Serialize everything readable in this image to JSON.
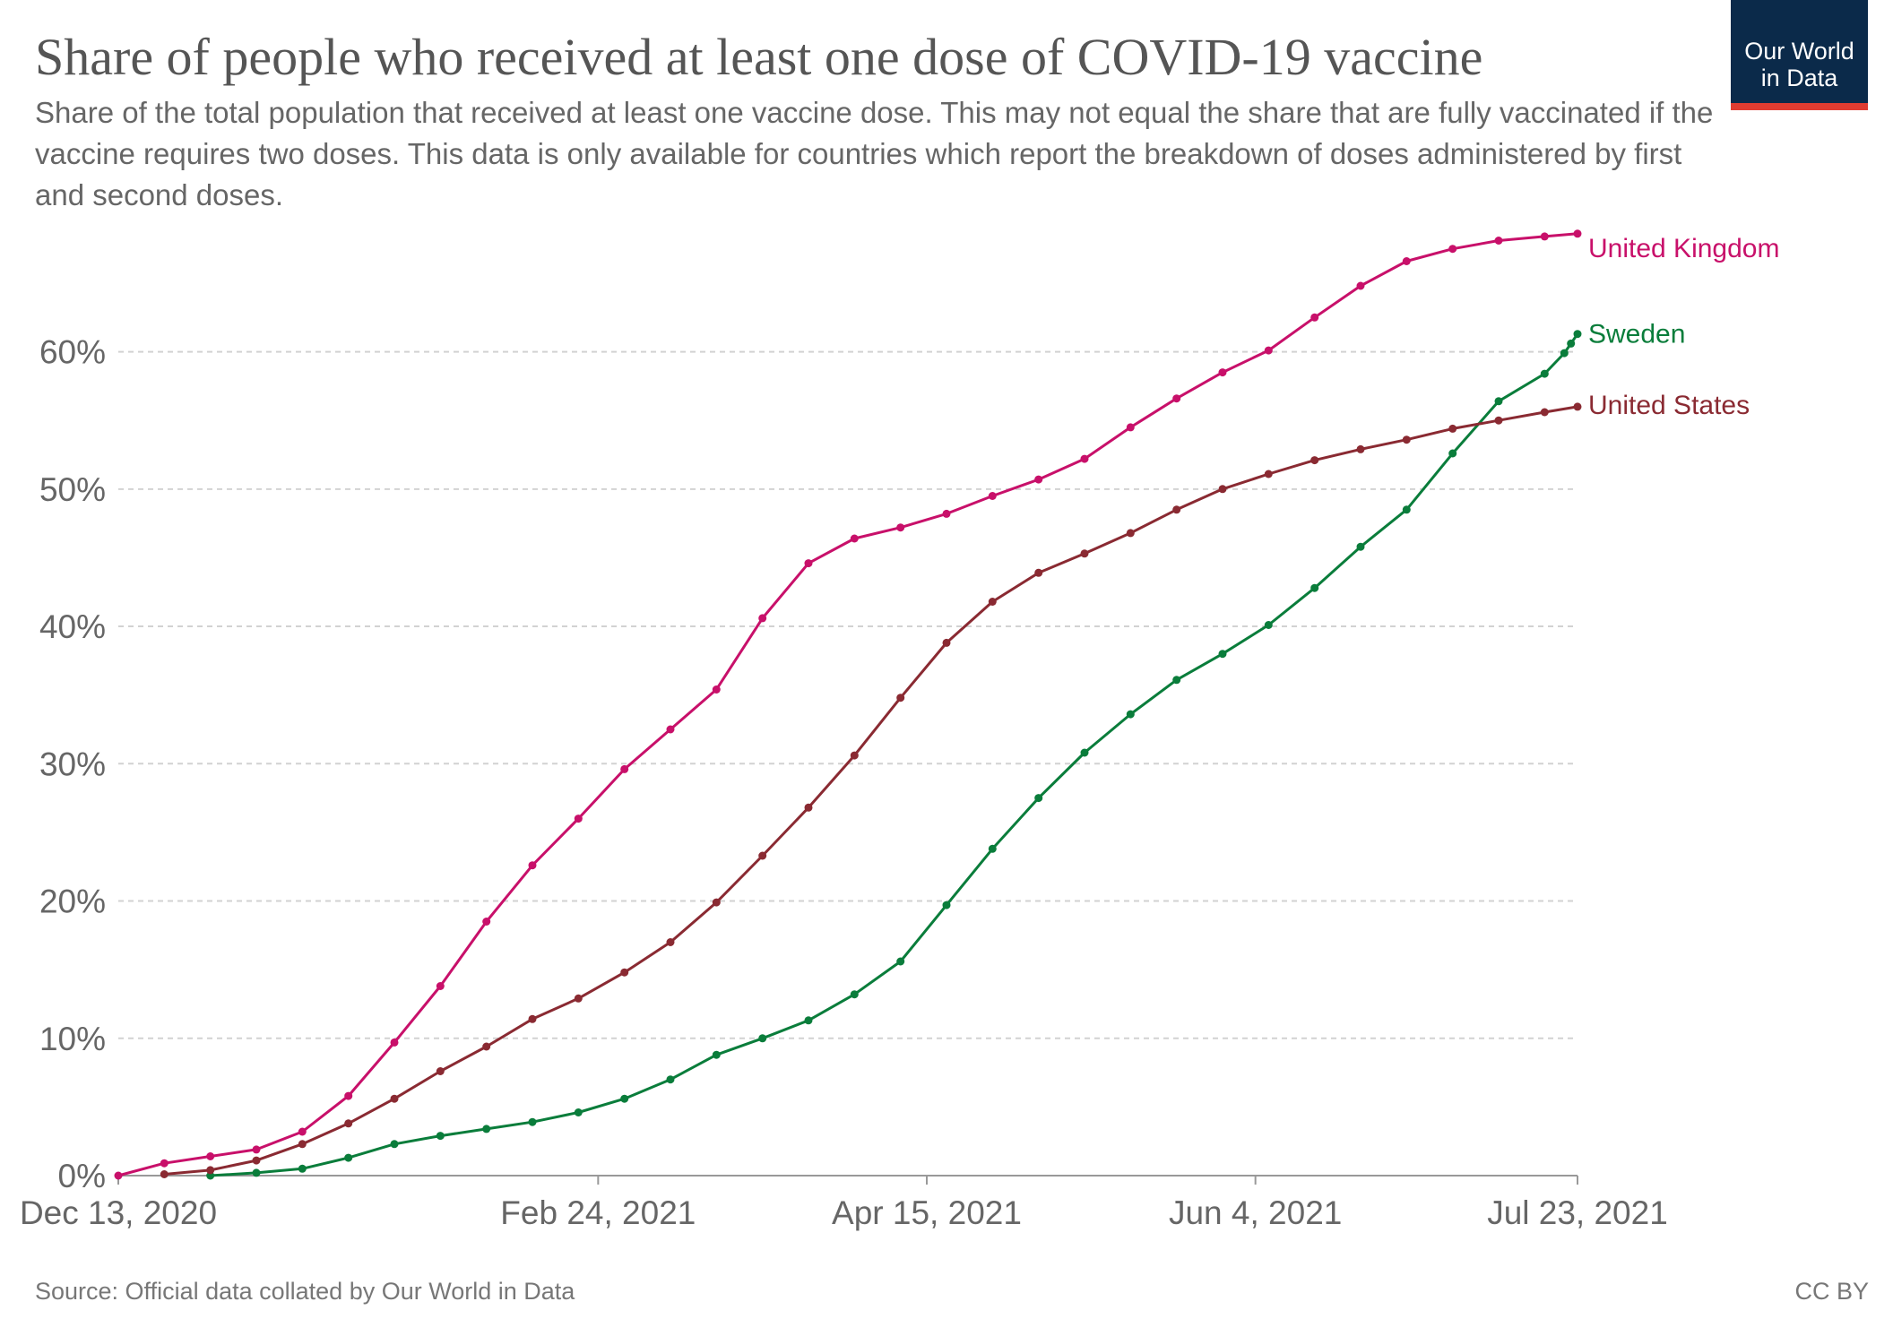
{
  "header": {
    "title": "Share of people who received at least one dose of COVID-19 vaccine",
    "subtitle": "Share of the total population that received at least one vaccine dose. This may not equal the share that are fully vaccinated if the vaccine requires two doses. This data is only available for countries which report the breakdown of doses administered by first and second doses.",
    "logo_text": "Our World\nin Data"
  },
  "footer": {
    "source": "Source: Official data collated by Our World in Data",
    "license": "CC BY"
  },
  "colors": {
    "united_kingdom": "#c8106a",
    "sweden": "#0a7d3b",
    "united_states": "#8a2a32",
    "grid": "#d2d2d2",
    "logo_bg": "#0b2a4a",
    "logo_accent": "#e03c31"
  },
  "chart_data": {
    "type": "line",
    "x_type": "date",
    "x_range": [
      "2020-12-13",
      "2021-07-23"
    ],
    "x_ticks": [
      {
        "date": "2020-12-13",
        "label": "Dec 13, 2020"
      },
      {
        "date": "2021-02-24",
        "label": "Feb 24, 2021"
      },
      {
        "date": "2021-04-15",
        "label": "Apr 15, 2021"
      },
      {
        "date": "2021-06-04",
        "label": "Jun 4, 2021"
      },
      {
        "date": "2021-07-23",
        "label": "Jul 23, 2021"
      }
    ],
    "y_ticks": [
      0,
      10,
      20,
      30,
      40,
      50,
      60
    ],
    "y_tick_labels": [
      "0%",
      "10%",
      "20%",
      "30%",
      "40%",
      "50%",
      "60%"
    ],
    "ylim": [
      0,
      68
    ],
    "grid": true,
    "legend": "end-of-line labels",
    "series": [
      {
        "name": "United Kingdom",
        "color_key": "united_kingdom",
        "points": [
          [
            "2020-12-13",
            0
          ],
          [
            "2020-12-20",
            0.9
          ],
          [
            "2020-12-27",
            1.4
          ],
          [
            "2021-01-03",
            1.9
          ],
          [
            "2021-01-10",
            3.2
          ],
          [
            "2021-01-17",
            5.8
          ],
          [
            "2021-01-24",
            9.7
          ],
          [
            "2021-01-31",
            13.8
          ],
          [
            "2021-02-07",
            18.5
          ],
          [
            "2021-02-14",
            22.6
          ],
          [
            "2021-02-21",
            26.0
          ],
          [
            "2021-02-28",
            29.6
          ],
          [
            "2021-03-07",
            32.5
          ],
          [
            "2021-03-14",
            35.4
          ],
          [
            "2021-03-21",
            40.6
          ],
          [
            "2021-03-28",
            44.6
          ],
          [
            "2021-04-04",
            46.4
          ],
          [
            "2021-04-11",
            47.2
          ],
          [
            "2021-04-18",
            48.2
          ],
          [
            "2021-04-25",
            49.5
          ],
          [
            "2021-05-02",
            50.7
          ],
          [
            "2021-05-09",
            52.2
          ],
          [
            "2021-05-16",
            54.5
          ],
          [
            "2021-05-23",
            56.6
          ],
          [
            "2021-05-30",
            58.5
          ],
          [
            "2021-06-06",
            60.1
          ],
          [
            "2021-06-13",
            62.5
          ],
          [
            "2021-06-20",
            64.8
          ],
          [
            "2021-06-27",
            66.6
          ],
          [
            "2021-07-04",
            67.5
          ],
          [
            "2021-07-11",
            68.1
          ],
          [
            "2021-07-18",
            68.4
          ],
          [
            "2021-07-23",
            68.6
          ]
        ]
      },
      {
        "name": "Sweden",
        "color_key": "sweden",
        "points": [
          [
            "2020-12-27",
            0
          ],
          [
            "2021-01-03",
            0.2
          ],
          [
            "2021-01-10",
            0.5
          ],
          [
            "2021-01-17",
            1.3
          ],
          [
            "2021-01-24",
            2.3
          ],
          [
            "2021-01-31",
            2.9
          ],
          [
            "2021-02-07",
            3.4
          ],
          [
            "2021-02-14",
            3.9
          ],
          [
            "2021-02-21",
            4.6
          ],
          [
            "2021-02-28",
            5.6
          ],
          [
            "2021-03-07",
            7.0
          ],
          [
            "2021-03-14",
            8.8
          ],
          [
            "2021-03-21",
            10.0
          ],
          [
            "2021-03-28",
            11.3
          ],
          [
            "2021-04-04",
            13.2
          ],
          [
            "2021-04-11",
            15.6
          ],
          [
            "2021-04-18",
            19.7
          ],
          [
            "2021-04-25",
            23.8
          ],
          [
            "2021-05-02",
            27.5
          ],
          [
            "2021-05-09",
            30.8
          ],
          [
            "2021-05-16",
            33.6
          ],
          [
            "2021-05-23",
            36.1
          ],
          [
            "2021-05-30",
            38.0
          ],
          [
            "2021-06-06",
            40.1
          ],
          [
            "2021-06-13",
            42.8
          ],
          [
            "2021-06-20",
            45.8
          ],
          [
            "2021-06-27",
            48.5
          ],
          [
            "2021-07-04",
            52.6
          ],
          [
            "2021-07-11",
            56.4
          ],
          [
            "2021-07-18",
            58.4
          ],
          [
            "2021-07-21",
            59.9
          ],
          [
            "2021-07-22",
            60.6
          ],
          [
            "2021-07-23",
            61.3
          ]
        ]
      },
      {
        "name": "United States",
        "color_key": "united_states",
        "points": [
          [
            "2020-12-20",
            0.1
          ],
          [
            "2020-12-27",
            0.4
          ],
          [
            "2021-01-03",
            1.1
          ],
          [
            "2021-01-10",
            2.3
          ],
          [
            "2021-01-17",
            3.8
          ],
          [
            "2021-01-24",
            5.6
          ],
          [
            "2021-01-31",
            7.6
          ],
          [
            "2021-02-07",
            9.4
          ],
          [
            "2021-02-14",
            11.4
          ],
          [
            "2021-02-21",
            12.9
          ],
          [
            "2021-02-28",
            14.8
          ],
          [
            "2021-03-07",
            17.0
          ],
          [
            "2021-03-14",
            19.9
          ],
          [
            "2021-03-21",
            23.3
          ],
          [
            "2021-03-28",
            26.8
          ],
          [
            "2021-04-04",
            30.6
          ],
          [
            "2021-04-11",
            34.8
          ],
          [
            "2021-04-18",
            38.8
          ],
          [
            "2021-04-25",
            41.8
          ],
          [
            "2021-05-02",
            43.9
          ],
          [
            "2021-05-09",
            45.3
          ],
          [
            "2021-05-16",
            46.8
          ],
          [
            "2021-05-23",
            48.5
          ],
          [
            "2021-05-30",
            50.0
          ],
          [
            "2021-06-06",
            51.1
          ],
          [
            "2021-06-13",
            52.1
          ],
          [
            "2021-06-20",
            52.9
          ],
          [
            "2021-06-27",
            53.6
          ],
          [
            "2021-07-04",
            54.4
          ],
          [
            "2021-07-11",
            55.0
          ],
          [
            "2021-07-18",
            55.6
          ],
          [
            "2021-07-23",
            56.0
          ]
        ]
      }
    ]
  }
}
